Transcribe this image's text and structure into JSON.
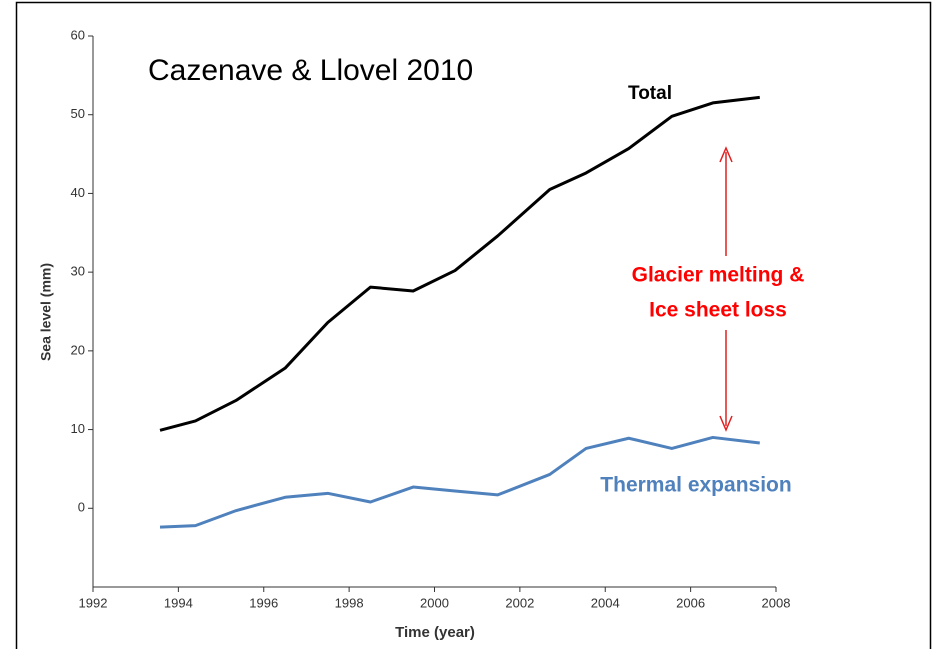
{
  "chart_data": {
    "type": "line",
    "title": "Cazenave & Llovel 2010",
    "x_label": "Time (year)",
    "y_label": "Sea level (mm)",
    "x": [
      1993.57,
      1994.4,
      1995.35,
      1996.5,
      1997.5,
      1998.5,
      1999.5,
      2000.48,
      2001.48,
      2002.7,
      2003.55,
      2004.55,
      2005.56,
      2006.52,
      2007.62
    ],
    "series": [
      {
        "name": "Total",
        "color": "#000000",
        "values": [
          9.9,
          11.1,
          13.7,
          17.8,
          23.6,
          28.1,
          27.6,
          30.2,
          34.6,
          40.5,
          42.6,
          45.7,
          49.8,
          51.5,
          52.2
        ]
      },
      {
        "name": "Thermal expansion",
        "color": "#4f81bd",
        "values": [
          -2.4,
          -2.2,
          -0.3,
          1.4,
          1.9,
          0.8,
          2.7,
          2.2,
          1.7,
          4.3,
          7.6,
          8.9,
          7.6,
          9.0,
          8.3
        ]
      }
    ],
    "annotations": [
      "Glacier melting &",
      "Ice sheet loss"
    ],
    "annotation_color": "#ff0000",
    "xlim": [
      1992,
      2008
    ],
    "xticks": [
      1992,
      1994,
      1996,
      1998,
      2000,
      2002,
      2004,
      2006,
      2008
    ],
    "ylim": [
      -10,
      60
    ],
    "yticks": [
      0,
      10,
      20,
      30,
      40,
      50,
      60
    ],
    "grid": false
  }
}
